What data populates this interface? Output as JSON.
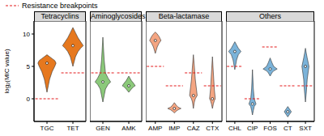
{
  "chart_data": [
    {
      "type": "violin",
      "title": "Tetracyclins",
      "categories": [
        "TGC",
        "TET"
      ],
      "color": "#e6781e",
      "ylabel": "log₂(MIC value)",
      "ylim": [
        -3.5,
        12
      ],
      "yticks": [
        0,
        5,
        10
      ],
      "tick_labels": true,
      "legend": "upper left",
      "violins": [
        {
          "offset": [
            0,
            0.1,
            0.2,
            0.3,
            0.35
          ],
          "low": [
            1,
            3,
            4.2,
            5,
            5.5
          ],
          "high": [
            6.8,
            6.5,
            6.2,
            5.9,
            5.5
          ],
          "median": 5.5
        },
        {
          "offset": [
            0,
            0.1,
            0.2,
            0.3,
            0.4
          ],
          "low": [
            5,
            6.5,
            7.3,
            7.8,
            8.2
          ],
          "high": [
            11,
            10.2,
            9.4,
            8.8,
            8.2
          ],
          "median": 8.2
        }
      ],
      "series": [
        {
          "name": "Resistance breakpoints",
          "color": "#e41a1c",
          "line_style": "dashed",
          "values": [
            0,
            4
          ]
        }
      ]
    },
    {
      "type": "violin",
      "title": "Aminoglycosides",
      "categories": [
        "GEN",
        "AMK"
      ],
      "color": "#8bc97a",
      "ylim": [
        -3.5,
        12
      ],
      "yticks": [
        0,
        5,
        10
      ],
      "tick_labels": "x",
      "violins": [
        {
          "offset": [
            0,
            0.05,
            0.1,
            0.2,
            0.3
          ],
          "low": [
            -0.5,
            0.5,
            1.5,
            2.2,
            2.6
          ],
          "high": [
            9.5,
            6,
            4,
            3.2,
            2.6
          ],
          "median": 2.6
        },
        {
          "offset": [
            0,
            0.1,
            0.2,
            0.25
          ],
          "low": [
            1,
            1.5,
            1.9,
            2
          ],
          "high": [
            3.5,
            2.8,
            2.3,
            2
          ],
          "median": 2
        }
      ],
      "series": [
        {
          "color": "#e41a1c",
          "line_style": "dashed",
          "values": [
            4,
            4
          ]
        }
      ]
    },
    {
      "type": "violin",
      "title": "Beta-lactamase",
      "categories": [
        "AMP",
        "IMP",
        "CAZ",
        "CTX"
      ],
      "color": "#f4a582",
      "ylim": [
        -3.5,
        12
      ],
      "yticks": [
        0,
        5,
        10
      ],
      "tick_labels": "x",
      "violins": [
        {
          "offset": [
            0,
            0.1,
            0.2,
            0.3
          ],
          "low": [
            7,
            8,
            8.6,
            9
          ],
          "high": [
            10.3,
            10,
            9.6,
            9
          ],
          "median": 9
        },
        {
          "offset": [
            0,
            0.1,
            0.2,
            0.35
          ],
          "low": [
            -2.2,
            -1.9,
            -1.7,
            -1.5
          ],
          "high": [
            -0.6,
            -1,
            -1.3,
            -1.5
          ],
          "median": -1.5
        },
        {
          "offset": [
            0,
            0.05,
            0.1,
            0.2
          ],
          "low": [
            -1.5,
            -0.5,
            0,
            0.5
          ],
          "high": [
            6.8,
            5,
            3,
            0.5
          ],
          "median": 0.5
        },
        {
          "offset": [
            0,
            0.05,
            0.1,
            0.15
          ],
          "low": [
            -1.5,
            -0.8,
            -0.3,
            0
          ],
          "high": [
            6.5,
            4,
            1.5,
            0
          ],
          "median": 0
        }
      ],
      "series": [
        {
          "color": "#e41a1c",
          "line_style": "dashed",
          "values": [
            5,
            2,
            4,
            2
          ]
        }
      ]
    },
    {
      "type": "violin",
      "title": "Others",
      "categories": [
        "CHL",
        "CIP",
        "FOS",
        "CT",
        "SXT"
      ],
      "color": "#7bb3d9",
      "ylim": [
        -3.5,
        12
      ],
      "yticks": [
        0,
        5,
        10
      ],
      "tick_labels": "x",
      "violins": [
        {
          "offset": [
            0,
            0.1,
            0.2,
            0.35
          ],
          "low": [
            4.5,
            6,
            6.8,
            7.3
          ],
          "high": [
            8.8,
            8.3,
            7.8,
            7.3
          ],
          "median": 7.3
        },
        {
          "offset": [
            0,
            0.05,
            0.1,
            0.2
          ],
          "low": [
            -2.5,
            -1.8,
            -1.2,
            -0.8
          ],
          "high": [
            4.5,
            1.5,
            0,
            -0.8
          ],
          "median": -0.8
        },
        {
          "offset": [
            0,
            0.1,
            0.2,
            0.4
          ],
          "low": [
            3.5,
            4,
            4.3,
            4.6
          ],
          "high": [
            6.3,
            5.6,
            5,
            4.6
          ],
          "median": 4.6
        },
        {
          "offset": [
            0,
            0.1,
            0.2
          ],
          "low": [
            -2.8,
            -2.4,
            -2
          ],
          "high": [
            -1.2,
            -1.6,
            -2
          ],
          "median": -2
        },
        {
          "offset": [
            0,
            0.05,
            0.1,
            0.2
          ],
          "low": [
            -0.5,
            1,
            3,
            5
          ],
          "high": [
            7.8,
            7,
            6.3,
            5
          ],
          "median": 5
        }
      ],
      "series": [
        {
          "color": "#e41a1c",
          "line_style": "dashed",
          "values": [
            5,
            0,
            8,
            2,
            2
          ]
        }
      ]
    }
  ]
}
